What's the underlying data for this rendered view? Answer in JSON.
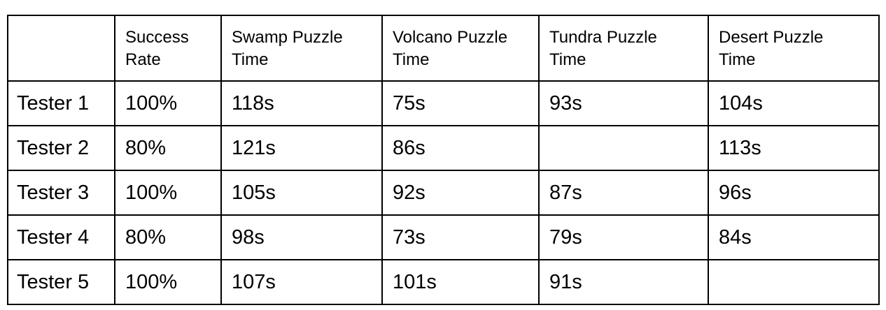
{
  "table": {
    "columns": [
      [
        "",
        ""
      ],
      [
        "Success",
        "Rate"
      ],
      [
        "Swamp Puzzle",
        "Time"
      ],
      [
        "Volcano Puzzle",
        "Time"
      ],
      [
        "Tundra Puzzle",
        "Time"
      ],
      [
        "Desert Puzzle",
        "Time"
      ]
    ],
    "rows": [
      [
        "Tester 1",
        "100%",
        "118s",
        "75s",
        "93s",
        "104s"
      ],
      [
        "Tester 2",
        "80%",
        "121s",
        "86s",
        "",
        "113s"
      ],
      [
        "Tester 3",
        "100%",
        "105s",
        "92s",
        "87s",
        "96s"
      ],
      [
        "Tester 4",
        "80%",
        "98s",
        "73s",
        "79s",
        "84s"
      ],
      [
        "Tester 5",
        "100%",
        "107s",
        "101s",
        "91s",
        ""
      ]
    ]
  }
}
